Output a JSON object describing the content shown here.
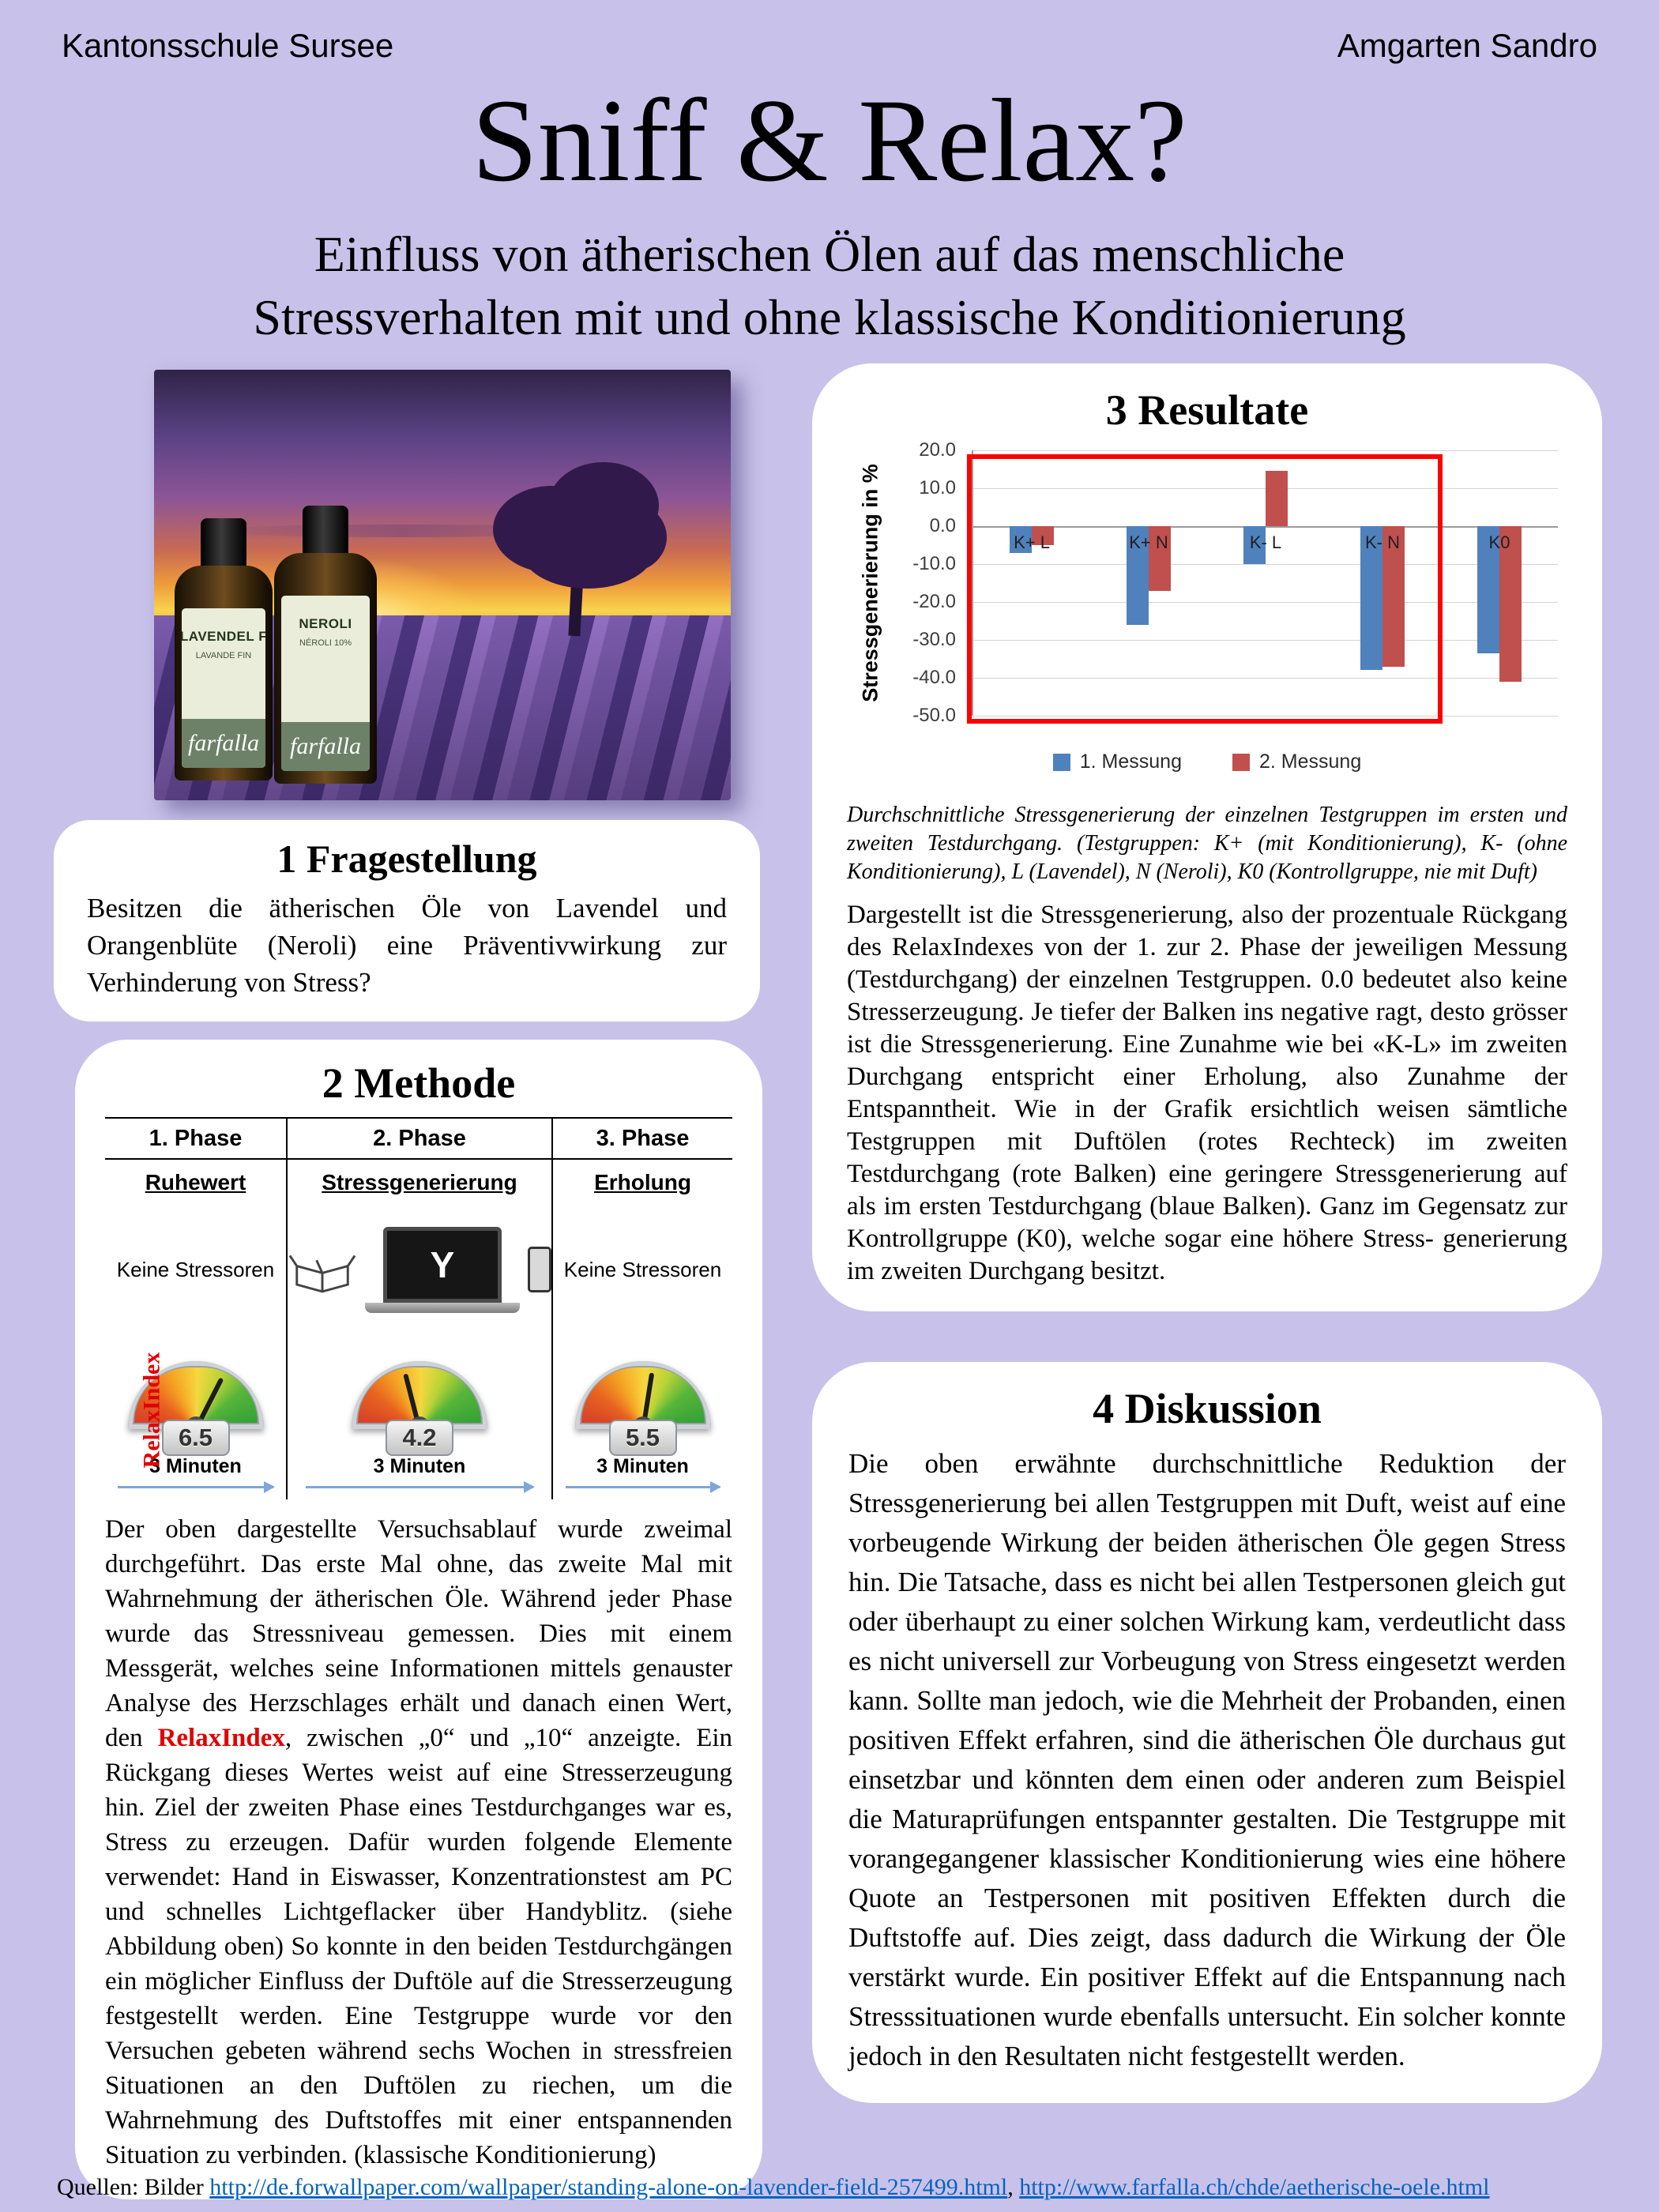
{
  "header": {
    "left": "Kantonsschule Sursee",
    "right": "Amgarten Sandro"
  },
  "title": "Sniff & Relax?",
  "subtitle": {
    "line1": "Einfluss von ätherischen Ölen auf das menschliche",
    "line2": "Stressverhalten mit und ohne klassische Konditionierung"
  },
  "photo": {
    "bottle1_line1": "LAVENDEL F",
    "bottle1_line2": "LAVANDE FIN",
    "bottle2_line1": "NEROLI",
    "bottle2_line2": "NÉROLI 10%",
    "brand": "farfalla"
  },
  "fragestellung": {
    "title": "1 Fragestellung",
    "text": "Besitzen die ätherischen Öle von Lavendel und Orangenblüte (Neroli) eine Präventivwirkung zur Verhinderung von Stress?"
  },
  "methode": {
    "title": "2 Methode",
    "relax_label": "RelaxIndex",
    "laptop_screen_letter": "Y",
    "phases": [
      {
        "header": "1. Phase",
        "state": "Ruhewert",
        "note": "Keine Stressoren",
        "gauge": "6.5",
        "duration": "3 Minuten"
      },
      {
        "header": "2. Phase",
        "state": "Stressgenerierung",
        "gauge": "4.2",
        "duration": "3 Minuten"
      },
      {
        "header": "3. Phase",
        "state": "Erholung",
        "note": "Keine Stressoren",
        "gauge": "5.5",
        "duration": "3 Minuten"
      }
    ],
    "text_before": "Der oben dargestellte Versuchsablauf wurde zweimal durchgeführt. Das erste Mal ohne, das zweite Mal mit Wahrnehmung der ätherischen Öle. Während jeder Phase wurde das Stressniveau gemessen. Dies mit einem Messgerät, welches seine Informationen mittels genauster Analyse des Herzschlages erhält und danach einen Wert, den ",
    "highlight": "RelaxIndex",
    "text_after": ", zwischen „0“ und „10“ anzeigte. Ein Rückgang dieses Wertes weist auf eine Stresserzeugung hin. Ziel der zweiten Phase eines Testdurchganges war es, Stress zu erzeugen. Dafür wurden folgende Elemente verwendet: Hand in Eiswasser, Konzentrationstest am PC und schnelles Lichtgeflacker über Handyblitz. (siehe Abbildung oben) So konnte in den beiden Testdurchgängen ein möglicher Einfluss der Duftöle auf die Stresserzeugung festgestellt werden. Eine Testgruppe wurde vor den Versuchen gebeten während sechs Wochen in stressfreien Situationen an den Duftölen zu riechen, um die Wahrnehmung des Duftstoffes mit einer entspannenden Situation zu verbinden. (klassische Konditionierung)"
  },
  "resultate": {
    "title": "3 Resultate",
    "caption": "Durchschnittliche Stressgenerierung der einzelnen Testgruppen im ersten und zweiten Testdurchgang. (Testgruppen: K+ (mit Konditionierung), K- (ohne Konditionierung), L (Lavendel), N (Neroli), K0 (Kontrollgruppe, nie mit Duft)",
    "text": "Dargestellt ist die Stressgenerierung, also der prozentuale Rückgang des RelaxIndexes von der 1. zur 2. Phase der jeweiligen Messung (Testdurchgang) der einzelnen Testgruppen. 0.0 bedeutet also keine Stresserzeugung. Je tiefer der Balken ins negative ragt, desto grösser ist die Stressgenerierung. Eine Zunahme wie bei «K-L» im zweiten Durchgang entspricht einer Erholung, also Zunahme der Entspanntheit. Wie in der Grafik ersichtlich weisen sämtliche Testgruppen mit Duftölen (rotes Rechteck) im zweiten Testdurchgang (rote Balken) eine geringere Stressgenerierung auf als im ersten Testdurchgang (blaue Balken). Ganz im Gegensatz zur Kontrollgruppe (K0), welche sogar eine höhere Stress- generierung im zweiten Durchgang besitzt."
  },
  "chart_data": {
    "type": "bar",
    "title": "3 Resultate",
    "categories": [
      "K+ L",
      "K+ N",
      "K- L",
      "K- N",
      "K0"
    ],
    "series": [
      {
        "name": "1. Messung",
        "color": "#4F81BD",
        "values": [
          -7,
          -26,
          -10,
          -38,
          -33.5
        ]
      },
      {
        "name": "2. Messung",
        "color": "#C0504D",
        "values": [
          -5,
          -17,
          14.5,
          -37,
          -41
        ]
      }
    ],
    "xlabel": "",
    "ylabel": "Stressgenerierung in %",
    "ylim": [
      -50,
      20
    ],
    "ytick_step": 10,
    "grid": true,
    "legend_position": "bottom",
    "highlight_rect": {
      "groups": [
        0,
        3
      ],
      "ytop": 19,
      "ybottom": -52,
      "color": "#ff0000"
    }
  },
  "diskussion": {
    "title": "4 Diskussion",
    "text": "Die oben erwähnte durchschnittliche Reduktion der Stressgenerierung bei allen Testgruppen mit Duft, weist auf eine vorbeugende Wirkung der beiden ätherischen Öle gegen Stress hin. Die Tatsache, dass es nicht bei allen Testpersonen gleich gut oder überhaupt zu einer solchen Wirkung kam, verdeutlicht dass es nicht universell zur Vorbeugung von Stress eingesetzt werden kann. Sollte man jedoch, wie die Mehrheit der Probanden, einen positiven Effekt erfahren, sind die ätherischen Öle durchaus gut einsetzbar und könnten dem einen oder anderen zum Beispiel die Maturaprüfungen entspannter gestalten. Die Testgruppe mit vorangegangener klassischer Konditionierung wies eine höhere Quote an Testpersonen mit positiven Effekten durch die Duftstoffe auf. Dies zeigt, dass dadurch die Wirkung der Öle verstärkt wurde. Ein positiver Effekt auf die Entspannung nach Stresssituationen wurde ebenfalls untersucht. Ein solcher konnte jedoch in den Resultaten nicht festgestellt werden."
  },
  "quellen": {
    "prefix": "Quellen: Bilder ",
    "link1": "http://de.forwallpaper.com/wallpaper/standing-alone-on-lavender-field-257499.html",
    "separator": ", ",
    "link2": "http://www.farfalla.ch/chde/aetherische-oele.html"
  },
  "colors": {
    "background": "#c8c2ea",
    "series1": "#4F81BD",
    "series2": "#C0504D",
    "highlight": "#ff0000",
    "link": "#0563c1"
  }
}
